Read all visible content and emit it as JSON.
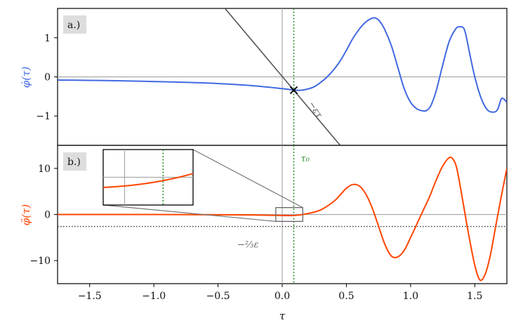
{
  "chart_data": [
    {
      "panel": "a.)",
      "type": "line",
      "ylabel": "φ̇(τ)",
      "xlim": [
        -1.75,
        1.75
      ],
      "ylim": [
        -1.75,
        1.75
      ],
      "yticks": [
        -1,
        0,
        1
      ],
      "x": [
        -1.75,
        -1.5,
        -1.25,
        -1.0,
        -0.75,
        -0.5,
        -0.25,
        0.0,
        0.05,
        0.1,
        0.15,
        0.2,
        0.25,
        0.3,
        0.35,
        0.4,
        0.45,
        0.5,
        0.55,
        0.6,
        0.65,
        0.7,
        0.73,
        0.76,
        0.8,
        0.85,
        0.9,
        0.95,
        1.0,
        1.05,
        1.1,
        1.13,
        1.16,
        1.2,
        1.25,
        1.3,
        1.35,
        1.38,
        1.42,
        1.46,
        1.5,
        1.55,
        1.6,
        1.65,
        1.68,
        1.71,
        1.75
      ],
      "y": [
        -0.08,
        -0.09,
        -0.1,
        -0.12,
        -0.14,
        -0.17,
        -0.22,
        -0.3,
        -0.32,
        -0.34,
        -0.34,
        -0.31,
        -0.25,
        -0.14,
        0.0,
        0.18,
        0.4,
        0.68,
        0.98,
        1.22,
        1.4,
        1.5,
        1.5,
        1.42,
        1.2,
        0.8,
        0.25,
        -0.3,
        -0.65,
        -0.82,
        -0.87,
        -0.85,
        -0.72,
        -0.35,
        0.3,
        0.9,
        1.22,
        1.28,
        1.2,
        0.6,
        0.0,
        -0.55,
        -0.85,
        -0.9,
        -0.82,
        -0.55,
        -0.65
      ],
      "series": [
        {
          "color": "#4169e1"
        }
      ],
      "reference_line": {
        "label": "−ετ",
        "slope": -3.9,
        "intercept": 0.0,
        "color": "#555555"
      },
      "marker": {
        "symbol": "×",
        "x": 0.09,
        "y": -0.34
      },
      "hline": 0,
      "vline": 0
    },
    {
      "panel": "b.)",
      "type": "line",
      "ylabel": "φ̈(τ)",
      "xlabel": "τ",
      "xlim": [
        -1.75,
        1.75
      ],
      "ylim": [
        -15,
        15
      ],
      "xticks": [
        -1.5,
        -1.0,
        -0.5,
        0.0,
        0.5,
        1.0,
        1.5
      ],
      "yticks": [
        -10,
        0,
        10
      ],
      "x": [
        -1.75,
        -1.5,
        -1.0,
        -0.5,
        -0.25,
        0.0,
        0.1,
        0.2,
        0.3,
        0.4,
        0.45,
        0.5,
        0.55,
        0.6,
        0.65,
        0.7,
        0.75,
        0.8,
        0.85,
        0.9,
        0.95,
        1.0,
        1.05,
        1.1,
        1.15,
        1.2,
        1.25,
        1.3,
        1.33,
        1.36,
        1.4,
        1.45,
        1.5,
        1.54,
        1.58,
        1.62,
        1.66,
        1.7,
        1.75
      ],
      "y": [
        0.0,
        0.0,
        0.0,
        -0.05,
        -0.1,
        -0.2,
        -0.2,
        0.2,
        1.0,
        2.8,
        4.2,
        5.7,
        6.5,
        6.2,
        4.5,
        1.5,
        -2.5,
        -6.5,
        -9.0,
        -9.2,
        -7.8,
        -5.0,
        -2.0,
        1.0,
        4.0,
        7.5,
        10.5,
        12.3,
        12.0,
        10.0,
        4.0,
        -4.0,
        -11.0,
        -14.2,
        -13.0,
        -9.0,
        -3.0,
        3.0,
        10.0
      ],
      "series": [
        {
          "color": "#ff4500"
        }
      ],
      "dotted_hline": {
        "y": -2.6,
        "label": "−⅔ε"
      },
      "inset_zoom": {
        "xlim": [
          -0.05,
          0.16
        ],
        "ylim": [
          -1.5,
          1.5
        ]
      },
      "hline": 0,
      "vline": 0
    }
  ],
  "vline_tau0": {
    "x": 0.09,
    "label": "τ₀",
    "color": "#2e8b2e"
  },
  "colors": {
    "blue": "#4169e1",
    "orange": "#ff4500",
    "green": "#2e8b2e",
    "gray": "#777777"
  }
}
